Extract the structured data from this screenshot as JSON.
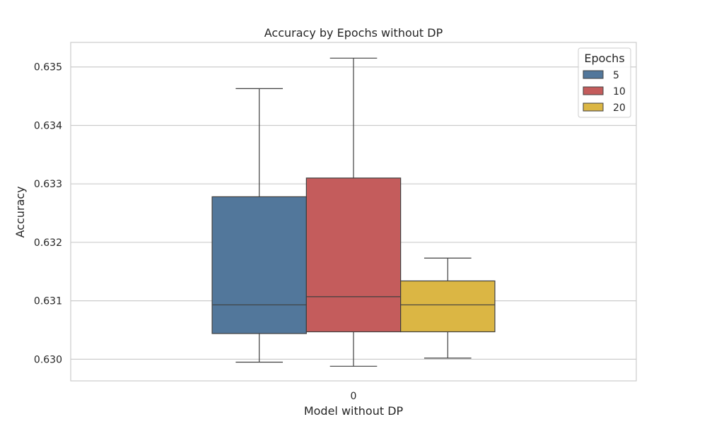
{
  "chart_data": {
    "type": "box",
    "title": "Accuracy by Epochs without DP",
    "xlabel": "Model without DP",
    "ylabel": "Accuracy",
    "categories": [
      "0"
    ],
    "ylim": [
      0.62963,
      0.63542
    ],
    "yticks": [
      0.63,
      0.631,
      0.632,
      0.633,
      0.634,
      0.635
    ],
    "ytick_labels": [
      "0.630",
      "0.631",
      "0.632",
      "0.633",
      "0.634",
      "0.635"
    ],
    "grid": true,
    "legend": {
      "title": "Epochs",
      "position": "top-right"
    },
    "series": [
      {
        "name": "5",
        "color": "#52779b",
        "whisker_low": 0.62995,
        "q1": 0.63044,
        "median": 0.63093,
        "q3": 0.63278,
        "whisker_high": 0.63463
      },
      {
        "name": "10",
        "color": "#c45c5c",
        "whisker_low": 0.62988,
        "q1": 0.63047,
        "median": 0.63107,
        "q3": 0.6331,
        "whisker_high": 0.63515
      },
      {
        "name": "20",
        "color": "#dbb644",
        "whisker_low": 0.63002,
        "q1": 0.63047,
        "median": 0.63093,
        "q3": 0.63134,
        "whisker_high": 0.63173
      }
    ]
  }
}
